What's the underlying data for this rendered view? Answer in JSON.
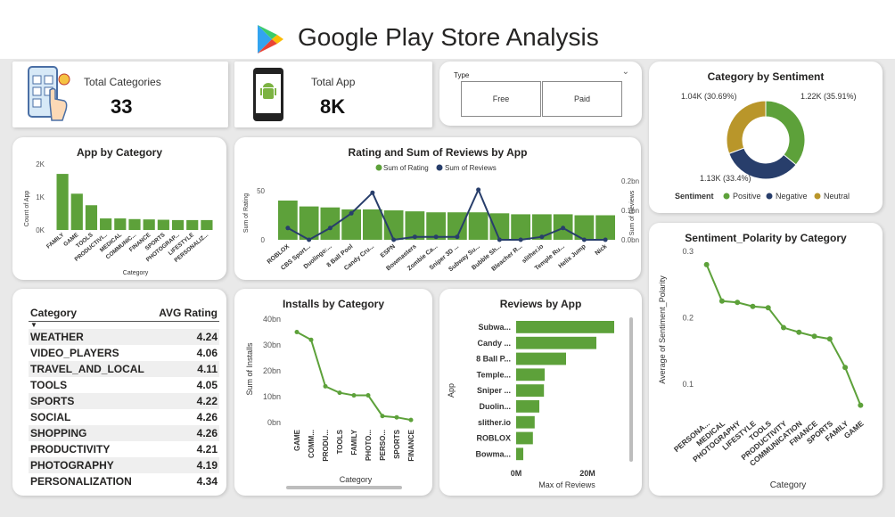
{
  "header": {
    "title": "Google Play Store Analysis"
  },
  "kpi": {
    "categories_label": "Total Categories",
    "categories_value": "33",
    "apps_label": "Total App",
    "apps_value": "8K"
  },
  "slicer": {
    "label": "Type",
    "options": [
      "Free",
      "Paid"
    ]
  },
  "colors": {
    "green": "#5da13a",
    "navy": "#283e6b",
    "gold": "#b9962a"
  },
  "app_by_category": {
    "title": "App by Category",
    "chart_data": {
      "type": "bar",
      "categories": [
        "FAMILY",
        "GAME",
        "TOOLS",
        "PRODUCTIVI...",
        "MEDICAL",
        "COMMUNIC...",
        "FINANCE",
        "SPORTS",
        "PHOTOGRAP...",
        "LIFESTYLE",
        "PERSONALIZ..."
      ],
      "values": [
        1700,
        1100,
        750,
        350,
        350,
        330,
        320,
        310,
        300,
        300,
        300
      ],
      "ylabel": "Count of App",
      "xlabel": "Category",
      "yticks": [
        "0K",
        "1K",
        "2K"
      ],
      "ylim": [
        0,
        2000
      ]
    }
  },
  "rating_reviews": {
    "title": "Rating and Sum of Reviews by App",
    "legend": [
      "Sum of Rating",
      "Sum of Reviews"
    ],
    "chart_data": {
      "type": "bar",
      "categories": [
        "ROBLOX",
        "CBS Sport...",
        "Duolingo:...",
        "8 Ball Pool",
        "Candy Cru...",
        "ESPN",
        "Bowmasters",
        "Zombie Ca...",
        "Sniper 3D ...",
        "Subway Su...",
        "Bubble Sh...",
        "Bleacher R...",
        "slither.io",
        "Temple Ru...",
        "Helix Jump",
        "Nick"
      ],
      "series": [
        {
          "name": "Sum of Rating",
          "values": [
            40,
            34,
            33,
            31,
            31,
            30,
            29,
            28,
            28,
            28,
            27,
            26,
            26,
            26,
            25,
            25
          ]
        },
        {
          "name": "Sum of Reviews",
          "values": [
            0.04,
            0.0,
            0.04,
            0.09,
            0.16,
            0.0,
            0.01,
            0.01,
            0.01,
            0.17,
            0.0,
            0.0,
            0.01,
            0.04,
            0.0,
            0.0
          ]
        }
      ],
      "ylabel": "Sum of Rating",
      "y2label": "Sum of Reviews",
      "yticks": [
        "0",
        "50"
      ],
      "y2ticks": [
        "0.0bn",
        "0.1bn",
        "0.2bn"
      ],
      "ylim": [
        0,
        50
      ],
      "y2lim": [
        0,
        0.2
      ]
    }
  },
  "sentiment": {
    "title": "Category by Sentiment",
    "legend_title": "Sentiment",
    "labels": [
      "1.22K (35.91%)",
      "1.13K (33.4%)",
      "1.04K (30.69%)"
    ],
    "chart_data": {
      "type": "pie",
      "categories": [
        "Positive",
        "Negative",
        "Neutral"
      ],
      "values": [
        35.91,
        33.4,
        30.69
      ]
    }
  },
  "rating_table": {
    "headers": [
      "Category",
      "AVG Rating"
    ],
    "rows": [
      [
        "WEATHER",
        "4.24"
      ],
      [
        "VIDEO_PLAYERS",
        "4.06"
      ],
      [
        "TRAVEL_AND_LOCAL",
        "4.11"
      ],
      [
        "TOOLS",
        "4.05"
      ],
      [
        "SPORTS",
        "4.22"
      ],
      [
        "SOCIAL",
        "4.26"
      ],
      [
        "SHOPPING",
        "4.26"
      ],
      [
        "PRODUCTIVITY",
        "4.21"
      ],
      [
        "PHOTOGRAPHY",
        "4.19"
      ],
      [
        "PERSONALIZATION",
        "4.34"
      ]
    ]
  },
  "installs": {
    "title": "Installs by Category",
    "chart_data": {
      "type": "line",
      "categories": [
        "GAME",
        "COMM...",
        "PRODU...",
        "TOOLS",
        "FAMILY",
        "PHOTO...",
        "PERSO...",
        "SPORTS",
        "FINANCE"
      ],
      "values": [
        35,
        32,
        14,
        11.5,
        10.5,
        10.5,
        2.5,
        2,
        1
      ],
      "ylabel": "Sum of Installs",
      "xlabel": "Category",
      "yticks": [
        "0bn",
        "10bn",
        "20bn",
        "30bn",
        "40bn"
      ],
      "ylim": [
        0,
        40
      ]
    }
  },
  "reviews_by_app": {
    "title": "Reviews by App",
    "chart_data": {
      "type": "bar",
      "categories": [
        "Subwa...",
        "Candy ...",
        "8 Ball P...",
        "Temple...",
        "Sniper ...",
        "Duolin...",
        "slither.io",
        "ROBLOX",
        "Bowma..."
      ],
      "values": [
        27.5,
        22.5,
        14,
        8,
        7.8,
        6.5,
        5.2,
        4.7,
        2
      ],
      "ylabel": "App",
      "xlabel": "Max of Reviews",
      "xticks": [
        "0M",
        "20M"
      ],
      "xlim": [
        0,
        30
      ]
    }
  },
  "polarity": {
    "title": "Sentiment_Polarity by Category",
    "chart_data": {
      "type": "line",
      "categories": [
        "PERSONA...",
        "MEDICAL",
        "PHOTOGRAPHY",
        "LIFESTYLE",
        "TOOLS",
        "PRODUCTIVITY",
        "COMMUNICATION",
        "FINANCE",
        "SPORTS",
        "FAMILY",
        "GAME"
      ],
      "values": [
        0.28,
        0.225,
        0.223,
        0.217,
        0.215,
        0.185,
        0.178,
        0.172,
        0.168,
        0.125,
        0.068
      ],
      "ylabel": "Average of Sentiment_Polarity",
      "xlabel": "Category",
      "yticks": [
        "0.1",
        "0.2",
        "0.3"
      ],
      "ylim": [
        0.05,
        0.3
      ]
    }
  }
}
